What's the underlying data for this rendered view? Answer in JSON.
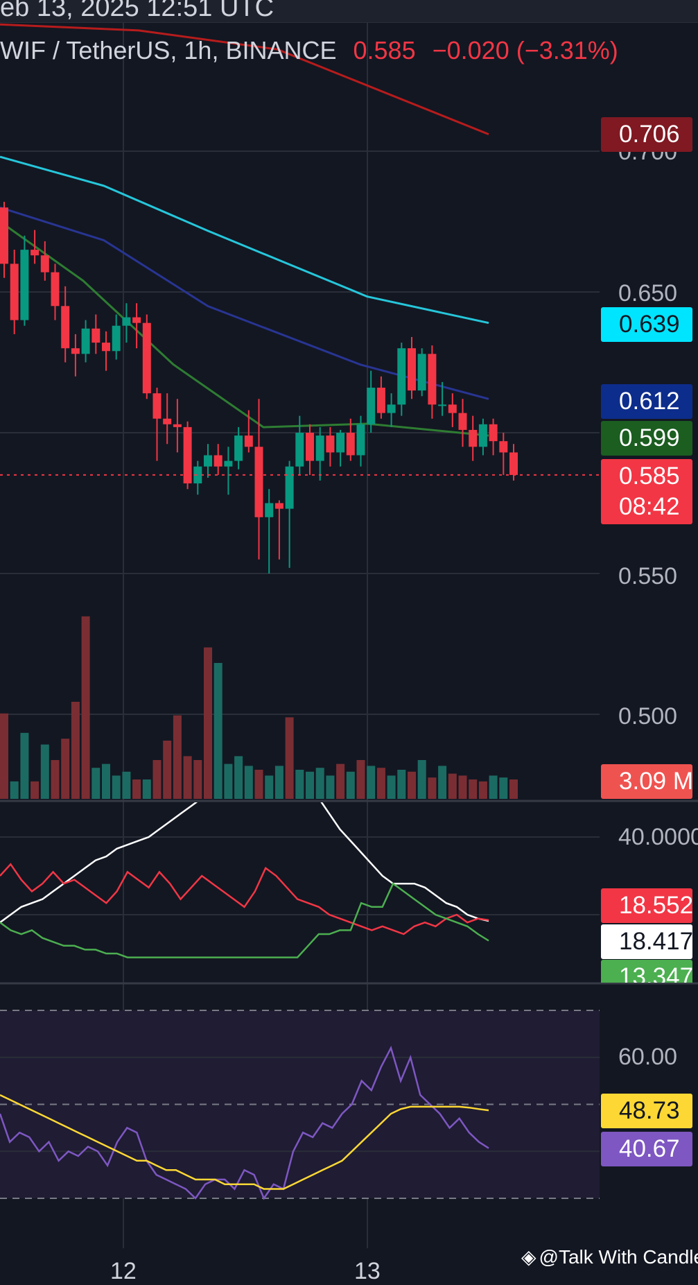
{
  "header": {
    "datetime_partial": "eb 13, 2025 12:51 UTC"
  },
  "legend": {
    "symbol": "WIF / TetherUS, 1h, BINANCE",
    "price": "0.585",
    "change": "−0.020 (−3.31%)"
  },
  "price_axis": [
    "0.700",
    "0.650",
    "0.550",
    "0.500"
  ],
  "price_tags": {
    "ma_red": {
      "value": "0.706",
      "color": "#801922"
    },
    "ma_cyan": {
      "value": "0.639",
      "color": "#00e5ff"
    },
    "ma_blue": {
      "value": "0.612",
      "color": "#0d2d8c"
    },
    "ma_green": {
      "value": "0.599",
      "color": "#1b5e20"
    },
    "last_price": {
      "value": "0.585",
      "countdown": "08:42",
      "color": "#f23645"
    },
    "volume": {
      "value": "3.09 M",
      "color": "#ef5350"
    }
  },
  "dmi_axis": [
    "40.0000"
  ],
  "dmi_tags": {
    "minus_di": {
      "value": "18.5527",
      "color": "#f23645"
    },
    "adx": {
      "value": "18.4178",
      "color": "#ffffff"
    },
    "plus_di": {
      "value": "13.3478",
      "color": "#4caf50"
    }
  },
  "rsi_axis": [
    "60.00"
  ],
  "rsi_tags": {
    "rsi_ma": {
      "value": "48.73",
      "color": "#fdd835"
    },
    "rsi": {
      "value": "40.67",
      "color": "#7e57c2"
    }
  },
  "time_axis": [
    "12",
    "13"
  ],
  "watermark": "@Talk With Candle",
  "chart_data": [
    {
      "type": "candlestick",
      "title": "WIF / TetherUS, 1h, BINANCE",
      "ylim": [
        0.5,
        0.72
      ],
      "candles": [
        [
          0.68,
          0.682,
          0.655,
          0.66
        ],
        [
          0.66,
          0.665,
          0.635,
          0.64
        ],
        [
          0.64,
          0.67,
          0.638,
          0.665
        ],
        [
          0.665,
          0.672,
          0.66,
          0.663
        ],
        [
          0.663,
          0.668,
          0.654,
          0.657
        ],
        [
          0.657,
          0.66,
          0.64,
          0.645
        ],
        [
          0.645,
          0.652,
          0.625,
          0.63
        ],
        [
          0.63,
          0.635,
          0.62,
          0.628
        ],
        [
          0.628,
          0.64,
          0.625,
          0.637
        ],
        [
          0.637,
          0.642,
          0.628,
          0.632
        ],
        [
          0.632,
          0.636,
          0.622,
          0.629
        ],
        [
          0.629,
          0.642,
          0.626,
          0.638
        ],
        [
          0.638,
          0.646,
          0.632,
          0.641
        ],
        [
          0.641,
          0.646,
          0.63,
          0.639
        ],
        [
          0.639,
          0.642,
          0.612,
          0.614
        ],
        [
          0.614,
          0.616,
          0.59,
          0.605
        ],
        [
          0.605,
          0.614,
          0.596,
          0.603
        ],
        [
          0.603,
          0.612,
          0.593,
          0.602
        ],
        [
          0.602,
          0.604,
          0.58,
          0.582
        ],
        [
          0.582,
          0.59,
          0.578,
          0.588
        ],
        [
          0.588,
          0.596,
          0.584,
          0.592
        ],
        [
          0.592,
          0.596,
          0.585,
          0.588
        ],
        [
          0.588,
          0.595,
          0.578,
          0.59
        ],
        [
          0.59,
          0.602,
          0.587,
          0.599
        ],
        [
          0.599,
          0.608,
          0.593,
          0.595
        ],
        [
          0.595,
          0.612,
          0.555,
          0.57
        ],
        [
          0.57,
          0.58,
          0.55,
          0.575
        ],
        [
          0.575,
          0.576,
          0.555,
          0.573
        ],
        [
          0.573,
          0.59,
          0.552,
          0.588
        ],
        [
          0.588,
          0.606,
          0.585,
          0.6
        ],
        [
          0.6,
          0.603,
          0.585,
          0.59
        ],
        [
          0.59,
          0.602,
          0.583,
          0.599
        ],
        [
          0.599,
          0.602,
          0.588,
          0.593
        ],
        [
          0.593,
          0.601,
          0.588,
          0.6
        ],
        [
          0.6,
          0.605,
          0.59,
          0.592
        ],
        [
          0.592,
          0.606,
          0.588,
          0.603
        ],
        [
          0.603,
          0.622,
          0.6,
          0.616
        ],
        [
          0.616,
          0.62,
          0.605,
          0.607
        ],
        [
          0.607,
          0.614,
          0.602,
          0.61
        ],
        [
          0.61,
          0.632,
          0.606,
          0.63
        ],
        [
          0.63,
          0.634,
          0.612,
          0.615
        ],
        [
          0.615,
          0.63,
          0.613,
          0.628
        ],
        [
          0.628,
          0.631,
          0.605,
          0.61
        ],
        [
          0.61,
          0.618,
          0.606,
          0.61
        ],
        [
          0.61,
          0.614,
          0.602,
          0.607
        ],
        [
          0.607,
          0.612,
          0.595,
          0.601
        ],
        [
          0.601,
          0.606,
          0.59,
          0.595
        ],
        [
          0.595,
          0.605,
          0.592,
          0.603
        ],
        [
          0.603,
          0.605,
          0.592,
          0.597
        ],
        [
          0.597,
          0.6,
          0.585,
          0.593
        ],
        [
          0.593,
          0.596,
          0.583,
          0.585
        ]
      ],
      "moving_averages": [
        {
          "color": "#b71c1c",
          "from": 0.745,
          "to": 0.706
        },
        {
          "color": "#26c6da",
          "from": 0.698,
          "to": 0.639
        },
        {
          "color": "#283593",
          "from": 0.68,
          "to": 0.612
        },
        {
          "color": "#2e7d32",
          "from": 0.675,
          "to": 0.599
        }
      ],
      "volume": [
        44,
        9,
        34,
        9,
        28,
        20,
        31,
        50,
        94,
        16,
        18,
        12,
        14,
        10,
        10,
        20,
        30,
        43,
        22,
        20,
        78,
        70,
        18,
        22,
        17,
        15,
        12,
        17,
        42,
        15,
        14,
        16,
        12,
        18,
        14,
        20,
        17,
        16,
        12,
        15,
        14,
        20,
        11,
        17,
        13,
        12,
        10,
        9,
        12,
        11,
        10
      ],
      "volume_color": [
        0,
        1,
        1,
        0,
        1,
        0,
        0,
        0,
        0,
        1,
        1,
        1,
        1,
        0,
        1,
        0,
        0,
        0,
        0,
        0,
        0,
        1,
        1,
        1,
        1,
        0,
        1,
        1,
        0,
        1,
        1,
        1,
        1,
        0,
        1,
        0,
        1,
        0,
        1,
        1,
        0,
        1,
        0,
        1,
        0,
        0,
        0,
        0,
        1,
        1,
        0
      ]
    },
    {
      "type": "line",
      "title": "DMI",
      "series": [
        {
          "color": "#ffffff",
          "values": [
            18,
            20,
            22,
            23,
            24,
            26,
            28,
            30,
            32,
            34,
            35,
            37,
            38,
            39,
            40,
            42,
            44,
            46,
            48,
            50,
            52,
            52,
            52,
            52,
            52,
            52,
            52,
            52,
            52,
            52,
            50,
            46,
            42,
            39,
            36,
            33,
            30,
            28,
            28,
            28,
            27,
            25,
            23,
            22,
            20,
            19,
            18.4
          ]
        },
        {
          "color": "#f23645",
          "values": [
            30,
            33,
            29,
            26,
            28,
            31,
            28,
            29,
            27,
            25,
            23,
            26,
            31,
            29,
            27,
            31,
            28,
            24,
            27,
            30,
            28,
            26,
            24,
            22,
            26,
            32,
            30,
            27,
            24,
            23,
            22,
            20,
            19,
            18,
            17,
            16,
            17,
            16,
            15,
            17,
            18,
            17,
            19,
            20,
            18,
            19,
            18.6
          ]
        },
        {
          "color": "#4caf50",
          "values": [
            18,
            16,
            15,
            16,
            14,
            13,
            12,
            12,
            11,
            11,
            10,
            10,
            9,
            9,
            9,
            9,
            9,
            9,
            9,
            9,
            9,
            9,
            9,
            9,
            9,
            9,
            9,
            9,
            9,
            12,
            15,
            15,
            16,
            16,
            23,
            22,
            22,
            28,
            26,
            24,
            22,
            20,
            19,
            18,
            17,
            15,
            13.3
          ]
        }
      ]
    },
    {
      "type": "line",
      "title": "RSI",
      "series": [
        {
          "color": "#7e57c2",
          "values": [
            48,
            42,
            44,
            43,
            40,
            42,
            38,
            40,
            39,
            41,
            40,
            37,
            42,
            45,
            44,
            38,
            35,
            34,
            33,
            32,
            30,
            33,
            34,
            34,
            32,
            36,
            35,
            30,
            33,
            32,
            40,
            44,
            43,
            46,
            45,
            48,
            50,
            55,
            53,
            58,
            62,
            55,
            60,
            52,
            50,
            48,
            45,
            47,
            44,
            42,
            40.67
          ]
        },
        {
          "color": "#fdd835",
          "values": [
            52,
            51,
            50,
            49,
            48,
            47,
            46,
            45,
            44,
            43,
            42,
            41,
            40,
            39,
            38,
            38,
            37,
            36,
            36,
            35,
            34,
            34,
            34,
            33,
            33,
            33,
            33,
            32,
            32,
            32,
            33,
            34,
            35,
            36,
            37,
            38,
            40,
            42,
            44,
            46,
            48,
            49,
            49.5,
            49.5,
            49.5,
            49.5,
            49.5,
            49.5,
            49.3,
            49,
            48.73
          ]
        }
      ]
    }
  ]
}
